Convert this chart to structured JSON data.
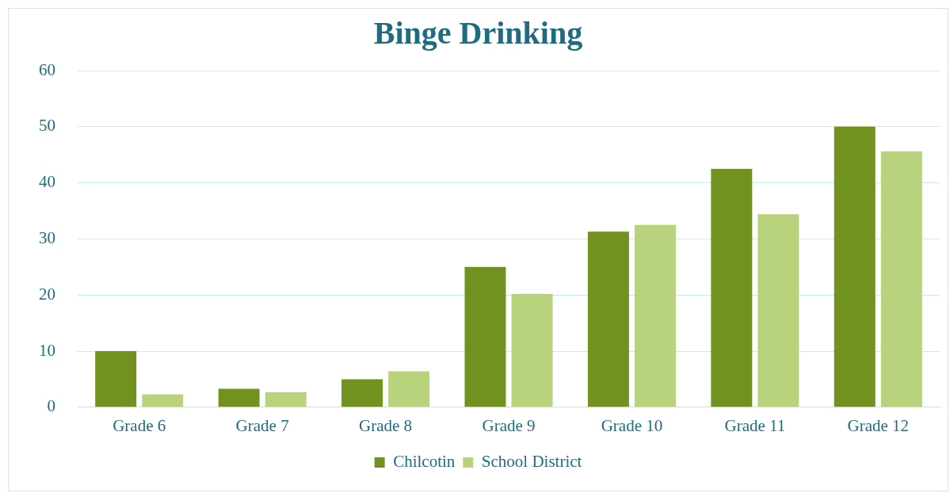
{
  "chart_data": {
    "type": "bar",
    "title": "Binge Drinking",
    "categories": [
      "Grade 6",
      "Grade 7",
      "Grade 8",
      "Grade 9",
      "Grade 10",
      "Grade 11",
      "Grade 12"
    ],
    "series": [
      {
        "name": "Chilcotin",
        "color": "#71921f",
        "values": [
          10,
          3.3,
          5,
          25,
          31.3,
          42.5,
          50
        ]
      },
      {
        "name": "School District",
        "color": "#b9d27c",
        "values": [
          2.3,
          2.7,
          6.4,
          20.2,
          32.5,
          34.4,
          45.6
        ]
      }
    ],
    "ylim": [
      0,
      60
    ],
    "yticks": [
      0,
      10,
      20,
      30,
      40,
      50,
      60
    ],
    "grid": "y",
    "legend": "bottom"
  }
}
